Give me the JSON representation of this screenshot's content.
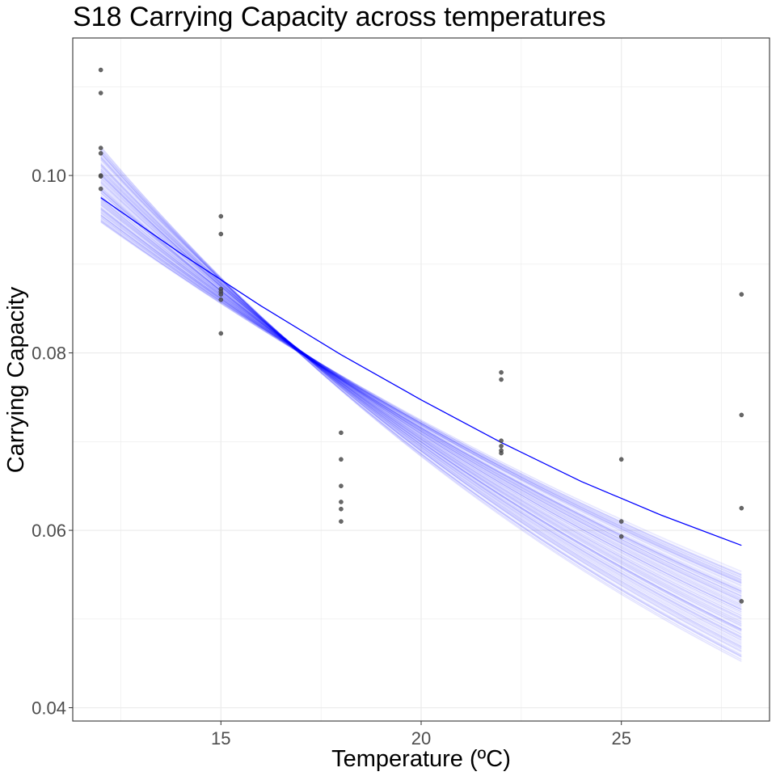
{
  "chart_data": {
    "type": "scatter",
    "title": "S18 Carrying Capacity across temperatures",
    "xlabel": "Temperature (ºC)",
    "ylabel": "Carrying Capacity",
    "xlim": [
      11.3,
      28.7
    ],
    "ylim": [
      0.0385,
      0.1155
    ],
    "x_ticks": [
      15,
      20,
      25
    ],
    "x_tick_labels": [
      "15",
      "20",
      "25"
    ],
    "y_ticks": [
      0.04,
      0.06,
      0.08,
      0.1
    ],
    "y_tick_labels": [
      "0.04",
      "0.06",
      "0.08",
      "0.10"
    ],
    "x_minor_gridlines": [
      12.5,
      17.5,
      22.5,
      27.5
    ],
    "y_minor_gridlines": [
      0.05,
      0.07,
      0.09,
      0.11
    ],
    "grid": true,
    "legend": "none",
    "series": [
      {
        "type": "scatter",
        "points": [
          {
            "x": 12,
            "y": 0.1119
          },
          {
            "x": 12,
            "y": 0.1093
          },
          {
            "x": 12,
            "y": 0.1031
          },
          {
            "x": 12,
            "y": 0.1025
          },
          {
            "x": 12,
            "y": 0.1
          },
          {
            "x": 12,
            "y": 0.0999
          },
          {
            "x": 12,
            "y": 0.0985
          },
          {
            "x": 15,
            "y": 0.0954
          },
          {
            "x": 15,
            "y": 0.0934
          },
          {
            "x": 15,
            "y": 0.0872
          },
          {
            "x": 15,
            "y": 0.0869
          },
          {
            "x": 15,
            "y": 0.0866
          },
          {
            "x": 15,
            "y": 0.086
          },
          {
            "x": 15,
            "y": 0.0822
          },
          {
            "x": 18,
            "y": 0.071
          },
          {
            "x": 18,
            "y": 0.068
          },
          {
            "x": 18,
            "y": 0.065
          },
          {
            "x": 18,
            "y": 0.0632
          },
          {
            "x": 18,
            "y": 0.0624
          },
          {
            "x": 18,
            "y": 0.061
          },
          {
            "x": 22,
            "y": 0.0778
          },
          {
            "x": 22,
            "y": 0.077
          },
          {
            "x": 22,
            "y": 0.0701
          },
          {
            "x": 22,
            "y": 0.0695
          },
          {
            "x": 22,
            "y": 0.069
          },
          {
            "x": 22,
            "y": 0.0687
          },
          {
            "x": 25,
            "y": 0.068
          },
          {
            "x": 25,
            "y": 0.061
          },
          {
            "x": 25,
            "y": 0.0593
          },
          {
            "x": 28,
            "y": 0.0866
          },
          {
            "x": 28,
            "y": 0.073
          },
          {
            "x": 28,
            "y": 0.0625
          },
          {
            "x": 28,
            "y": 0.052
          }
        ],
        "color": "#4d4d4d"
      },
      {
        "type": "line",
        "x": [
          12,
          14,
          16,
          18,
          20,
          22,
          24,
          26,
          28
        ],
        "y": [
          0.0975,
          0.0912,
          0.0853,
          0.0798,
          0.0747,
          0.0699,
          0.0655,
          0.0617,
          0.0583
        ],
        "color": "#0000ff"
      }
    ],
    "posterior_band": {
      "type": "line",
      "color": "#0000ff",
      "x_range": [
        12,
        28
      ],
      "y_start_range": [
        0.093,
        0.105
      ],
      "y_end_range": [
        0.043,
        0.0575
      ],
      "opacity": 0.045
    },
    "colors": {
      "fit_line": "#0000ff",
      "posterior_band": "#0000ff",
      "points": "#4d4d4d",
      "gridline": "#ebebeb",
      "panel_border": "#333333",
      "tick_label": "#4d4d4d",
      "text": "#000000",
      "background": "#ffffff"
    }
  }
}
